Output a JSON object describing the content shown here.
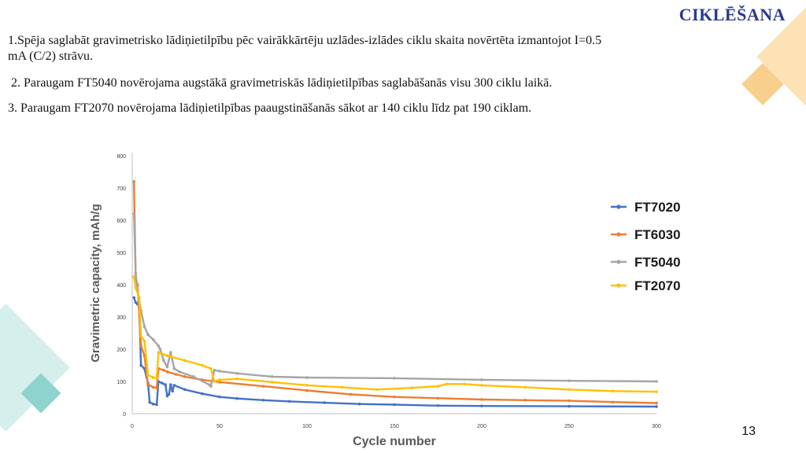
{
  "slide": {
    "title": "CIKLĒŠANA",
    "bullets": [
      "1.Spēja saglabāt gravimetrisko lādiņietilpību pēc vairākkārtēju uzlādes-izlādes ciklu skaita novērtēta izmantojot I=0.5",
      "mA (C/2) strāvu.",
      "2. Paraugam FT5040 novērojama augstākā gravimetriskās lādiņietilpības saglabāšanās visu 300 ciklu laikā.",
      "3. Paraugam FT2070 novērojama lādiņietilpības paaugstināšanās sākot ar 140 ciklu līdz pat 190 ciklam."
    ],
    "page_number": "13",
    "decor_colors": {
      "orange": "#f9cf8d",
      "teal": "#8fd3cf"
    }
  },
  "chart_data": {
    "type": "line",
    "title": "",
    "xlabel": "Cycle number",
    "ylabel": "Gravimetric capacity, mAh/g",
    "xlim": [
      0,
      300
    ],
    "ylim": [
      0,
      800
    ],
    "xticks": [
      0,
      50,
      100,
      150,
      200,
      250,
      300
    ],
    "yticks": [
      0,
      100,
      200,
      300,
      400,
      500,
      600,
      700,
      800
    ],
    "grid": false,
    "legend_position": "right",
    "series": [
      {
        "name": "FT7020",
        "color": "#4472c4",
        "points": [
          [
            1,
            360
          ],
          [
            2,
            345
          ],
          [
            3,
            340
          ],
          [
            4,
            330
          ],
          [
            5,
            150
          ],
          [
            7,
            140
          ],
          [
            9,
            95
          ],
          [
            10,
            35
          ],
          [
            12,
            30
          ],
          [
            14,
            28
          ],
          [
            15,
            100
          ],
          [
            17,
            95
          ],
          [
            19,
            90
          ],
          [
            20,
            55
          ],
          [
            21,
            60
          ],
          [
            22,
            90
          ],
          [
            23,
            70
          ],
          [
            24,
            88
          ],
          [
            30,
            75
          ],
          [
            40,
            62
          ],
          [
            50,
            52
          ],
          [
            60,
            47
          ],
          [
            75,
            42
          ],
          [
            90,
            38
          ],
          [
            110,
            34
          ],
          [
            130,
            30
          ],
          [
            150,
            28
          ],
          [
            175,
            25
          ],
          [
            200,
            24
          ],
          [
            250,
            23
          ],
          [
            300,
            22
          ]
        ]
      },
      {
        "name": "FT6030",
        "color": "#ed7d31",
        "points": [
          [
            1,
            720
          ],
          [
            2,
            420
          ],
          [
            3,
            400
          ],
          [
            5,
            210
          ],
          [
            7,
            180
          ],
          [
            9,
            90
          ],
          [
            12,
            82
          ],
          [
            14,
            80
          ],
          [
            15,
            140
          ],
          [
            18,
            135
          ],
          [
            20,
            130
          ],
          [
            25,
            122
          ],
          [
            30,
            115
          ],
          [
            40,
            105
          ],
          [
            50,
            98
          ],
          [
            75,
            85
          ],
          [
            100,
            72
          ],
          [
            125,
            60
          ],
          [
            150,
            52
          ],
          [
            175,
            48
          ],
          [
            200,
            44
          ],
          [
            225,
            42
          ],
          [
            250,
            40
          ],
          [
            275,
            36
          ],
          [
            300,
            33
          ]
        ]
      },
      {
        "name": "FT5040",
        "color": "#a5a5a5",
        "points": [
          [
            1,
            620
          ],
          [
            2,
            435
          ],
          [
            3,
            380
          ],
          [
            5,
            320
          ],
          [
            7,
            270
          ],
          [
            9,
            245
          ],
          [
            12,
            230
          ],
          [
            15,
            210
          ],
          [
            16,
            200
          ],
          [
            18,
            165
          ],
          [
            20,
            145
          ],
          [
            22,
            190
          ],
          [
            24,
            140
          ],
          [
            27,
            130
          ],
          [
            35,
            115
          ],
          [
            44,
            90
          ],
          [
            45,
            85
          ],
          [
            47,
            135
          ],
          [
            50,
            132
          ],
          [
            60,
            125
          ],
          [
            80,
            115
          ],
          [
            100,
            112
          ],
          [
            150,
            110
          ],
          [
            200,
            105
          ],
          [
            250,
            102
          ],
          [
            300,
            100
          ]
        ]
      },
      {
        "name": "FT2070",
        "color": "#ffc000",
        "points": [
          [
            1,
            425
          ],
          [
            2,
            390
          ],
          [
            4,
            360
          ],
          [
            5,
            240
          ],
          [
            7,
            225
          ],
          [
            9,
            120
          ],
          [
            12,
            112
          ],
          [
            14,
            110
          ],
          [
            15,
            190
          ],
          [
            20,
            180
          ],
          [
            30,
            165
          ],
          [
            40,
            150
          ],
          [
            45,
            140
          ],
          [
            47,
            100
          ],
          [
            50,
            105
          ],
          [
            60,
            108
          ],
          [
            80,
            98
          ],
          [
            100,
            88
          ],
          [
            120,
            82
          ],
          [
            140,
            75
          ],
          [
            160,
            80
          ],
          [
            175,
            85
          ],
          [
            180,
            92
          ],
          [
            190,
            92
          ],
          [
            200,
            88
          ],
          [
            225,
            82
          ],
          [
            250,
            75
          ],
          [
            275,
            70
          ],
          [
            300,
            68
          ]
        ]
      }
    ]
  }
}
